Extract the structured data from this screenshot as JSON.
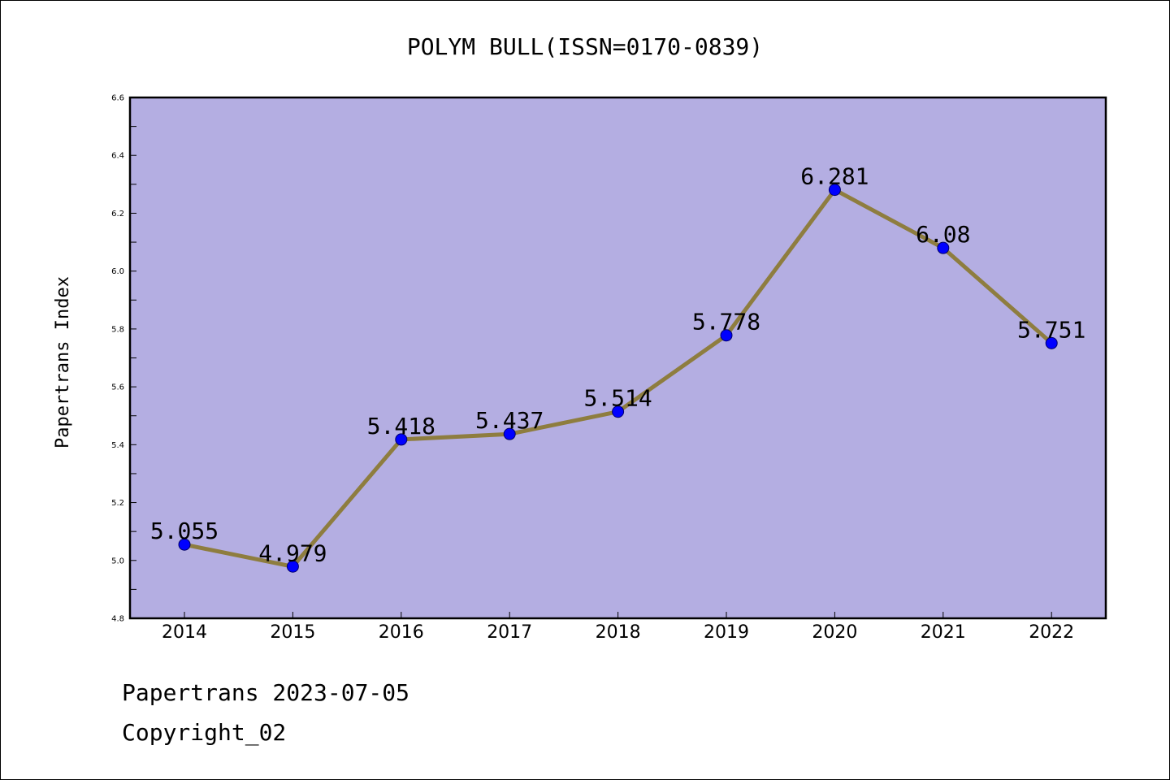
{
  "colors": {
    "plot_background": "#b4aee2",
    "line": "#8e7d3f",
    "marker": "#0000ff",
    "text": "#000000"
  },
  "chart_data": {
    "type": "line",
    "title": "POLYM BULL(ISSN=0170-0839)",
    "xlabel": "",
    "ylabel": "Papertrans Index",
    "categories": [
      "2014",
      "2015",
      "2016",
      "2017",
      "2018",
      "2019",
      "2020",
      "2021",
      "2022"
    ],
    "series": [
      {
        "values": [
          5.055,
          4.979,
          5.418,
          5.437,
          5.514,
          5.778,
          6.281,
          6.08,
          5.751
        ],
        "labels": [
          "5.055",
          "4.979",
          "5.418",
          "5.437",
          "5.514",
          "5.778",
          "6.281",
          "6.08",
          "5.751"
        ]
      }
    ],
    "ylim": [
      4.8,
      6.6
    ],
    "yticks": [
      "4.8",
      "5.0",
      "5.2",
      "5.4",
      "5.6",
      "5.8",
      "6.0",
      "6.2",
      "6.4",
      "6.6"
    ],
    "grid": false,
    "legend": "none"
  },
  "footer": {
    "line1": "Papertrans 2023-07-05",
    "line2": "Copyright_02"
  }
}
